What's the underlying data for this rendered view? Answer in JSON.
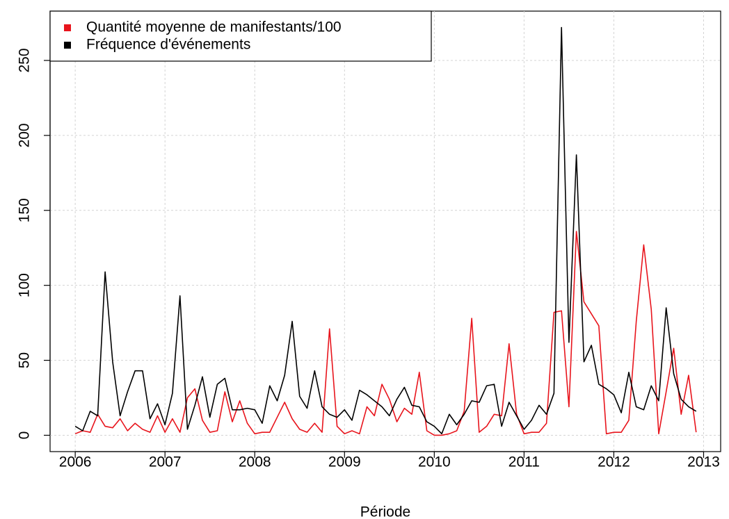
{
  "chart_data": {
    "type": "line",
    "x_label": "Période",
    "x": [
      2006,
      2006.083,
      2006.167,
      2006.25,
      2006.333,
      2006.417,
      2006.5,
      2006.583,
      2006.667,
      2006.75,
      2006.833,
      2006.917,
      2007,
      2007.083,
      2007.167,
      2007.25,
      2007.333,
      2007.417,
      2007.5,
      2007.583,
      2007.667,
      2007.75,
      2007.833,
      2007.917,
      2008,
      2008.083,
      2008.167,
      2008.25,
      2008.333,
      2008.417,
      2008.5,
      2008.583,
      2008.667,
      2008.75,
      2008.833,
      2008.917,
      2009,
      2009.083,
      2009.167,
      2009.25,
      2009.333,
      2009.417,
      2009.5,
      2009.583,
      2009.667,
      2009.75,
      2009.833,
      2009.917,
      2010,
      2010.083,
      2010.167,
      2010.25,
      2010.333,
      2010.417,
      2010.5,
      2010.583,
      2010.667,
      2010.75,
      2010.833,
      2010.917,
      2011,
      2011.083,
      2011.167,
      2011.25,
      2011.333,
      2011.417,
      2011.5,
      2011.583,
      2011.667,
      2011.75,
      2011.833,
      2011.917,
      2012,
      2012.083,
      2012.167,
      2012.25,
      2012.333,
      2012.417,
      2012.5,
      2012.583,
      2012.667,
      2012.75,
      2012.833,
      2012.917
    ],
    "series": [
      {
        "name": "Quantité moyenne de manifestants/100",
        "color": "#e8141c",
        "values": [
          1,
          3,
          2,
          14,
          6,
          5,
          11,
          3,
          8,
          4,
          2,
          13,
          2,
          11,
          2,
          25,
          31,
          10,
          2,
          3,
          29,
          9,
          23,
          8,
          1,
          2,
          2,
          12,
          22,
          11,
          4,
          2,
          8,
          2,
          71,
          6,
          1,
          3,
          1,
          19,
          13,
          34,
          24,
          9,
          18,
          14,
          42,
          3,
          0,
          0,
          1,
          3,
          16,
          78,
          2,
          6,
          14,
          13,
          61,
          14,
          1,
          2,
          2,
          8,
          82,
          83,
          19,
          136,
          89,
          81,
          73,
          1,
          2,
          2,
          10,
          76,
          127,
          84,
          1,
          29,
          58,
          14,
          40,
          2
        ]
      },
      {
        "name": "Fréquence d'événements",
        "color": "#000000",
        "values": [
          6,
          3,
          16,
          13,
          109,
          49,
          13,
          29,
          43,
          43,
          11,
          21,
          7,
          28,
          93,
          4,
          20,
          39,
          12,
          34,
          38,
          17,
          17,
          18,
          17,
          8,
          33,
          23,
          40,
          76,
          26,
          18,
          43,
          19,
          14,
          12,
          17,
          10,
          30,
          27,
          23,
          19,
          13,
          24,
          32,
          20,
          19,
          9,
          6,
          1,
          14,
          7,
          14,
          23,
          22,
          33,
          34,
          6,
          22,
          13,
          4,
          10,
          20,
          14,
          28,
          272,
          62,
          187,
          49,
          60,
          34,
          31,
          27,
          15,
          42,
          19,
          17,
          33,
          23,
          85,
          41,
          24,
          19,
          16
        ]
      }
    ],
    "xlim": [
      2005.72,
      2013.19
    ],
    "xticks": [
      2006,
      2007,
      2008,
      2009,
      2010,
      2011,
      2012,
      2013
    ],
    "ylim": [
      -10.9,
      282.9
    ],
    "yticks": [
      0,
      50,
      100,
      150,
      200,
      250
    ],
    "grid": true,
    "legend": "top-left"
  }
}
